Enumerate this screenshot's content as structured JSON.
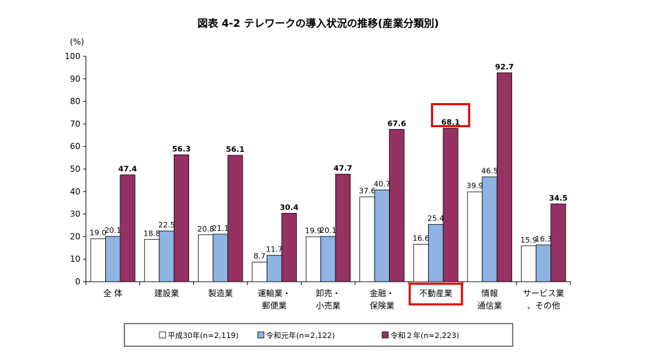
{
  "chart_data": {
    "type": "bar",
    "title": "図表 4-2 テレワークの導入状況の推移(産業分類別)",
    "y_unit": "(%)",
    "ylim": [
      0,
      100
    ],
    "yticks": [
      "0",
      "10",
      "20",
      "30",
      "40",
      "50",
      "60",
      "70",
      "80",
      "90",
      "100"
    ],
    "grid": false,
    "legend_position": "bottom",
    "categories": [
      [
        "全 体"
      ],
      [
        "建設業"
      ],
      [
        "製造業"
      ],
      [
        "運輸業・",
        "郵便業"
      ],
      [
        "卸売・",
        "小売業"
      ],
      [
        "金融・",
        "保険業"
      ],
      [
        "不動産業"
      ],
      [
        "情報",
        "通信業"
      ],
      [
        "サービス業",
        "、その他"
      ]
    ],
    "series": [
      {
        "name": "平成30年(n=2,119)",
        "color": "#ffffff",
        "values": [
          19.0,
          18.8,
          20.8,
          8.7,
          19.9,
          37.6,
          16.6,
          39.9,
          15.9
        ],
        "labels": [
          "19.0",
          "18.8",
          "20.8",
          "8.7",
          "19.9",
          "37.6",
          "16.6",
          "39.9",
          "15.9"
        ]
      },
      {
        "name": "令和元年(n=2,122)",
        "color": "#8db4e2",
        "values": [
          20.1,
          22.5,
          21.1,
          11.7,
          20.1,
          40.7,
          25.4,
          46.5,
          16.3
        ],
        "labels": [
          "20.1",
          "22.5",
          "21.1",
          "11.7",
          "20.1",
          "40.7",
          "25.4",
          "46.5",
          "16.3"
        ]
      },
      {
        "name": "令和２年(n=2,223)",
        "color": "#953163",
        "values": [
          47.4,
          56.3,
          56.1,
          30.4,
          47.7,
          67.6,
          68.1,
          92.7,
          34.5
        ],
        "labels": [
          "47.4",
          "56.3",
          "56.1",
          "30.4",
          "47.7",
          "67.6",
          "68.1",
          "92.7",
          "34.5"
        ]
      }
    ],
    "highlight_color": "#e00000",
    "highlight_category_index": 6
  }
}
